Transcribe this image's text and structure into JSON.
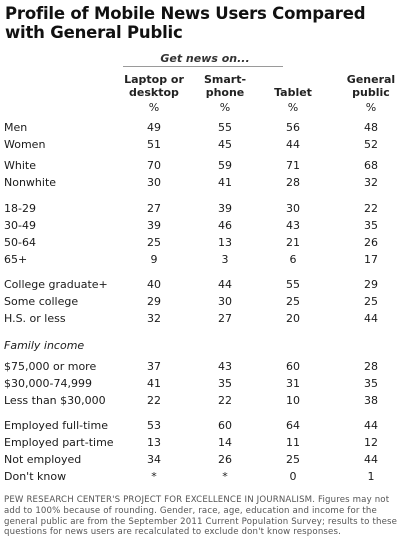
{
  "title": "Profile of Mobile News Users Compared with General Public",
  "subtitle": "Get news on...",
  "columns": [
    {
      "label": "Laptop or desktop",
      "unit": "%"
    },
    {
      "label": "Smart-phone",
      "unit": "%"
    },
    {
      "label": "Tablet",
      "unit": "%"
    },
    {
      "label": "General public",
      "unit": "%"
    }
  ],
  "section_label": "Family income",
  "footnote": "PEW RESEARCH CENTER'S PROJECT FOR EXCELLENCE IN JOURNALISM. Figures may not add to 100% because of rounding. Gender, race, age, education and income for the general public are from the September 2011 Current Population Survey; results to these questions for news users are recalculated to exclude don't know responses.",
  "chart_data": {
    "type": "table",
    "title": "Profile of Mobile News Users Compared with General Public",
    "columns": [
      "Laptop or desktop",
      "Smart-phone",
      "Tablet",
      "General public"
    ],
    "rows": [
      {
        "label": "Men",
        "values": [
          "49",
          "55",
          "56",
          "48"
        ]
      },
      {
        "label": "Women",
        "values": [
          "51",
          "45",
          "44",
          "52"
        ]
      },
      {
        "label": "White",
        "values": [
          "70",
          "59",
          "71",
          "68"
        ]
      },
      {
        "label": "Nonwhite",
        "values": [
          "30",
          "41",
          "28",
          "32"
        ]
      },
      {
        "label": "18-29",
        "values": [
          "27",
          "39",
          "30",
          "22"
        ]
      },
      {
        "label": "30-49",
        "values": [
          "39",
          "46",
          "43",
          "35"
        ]
      },
      {
        "label": "50-64",
        "values": [
          "25",
          "13",
          "21",
          "26"
        ]
      },
      {
        "label": "65+",
        "values": [
          "9",
          "3",
          "6",
          "17"
        ]
      },
      {
        "label": "College graduate+",
        "values": [
          "40",
          "44",
          "55",
          "29"
        ]
      },
      {
        "label": "Some college",
        "values": [
          "29",
          "30",
          "25",
          "25"
        ]
      },
      {
        "label": "H.S. or less",
        "values": [
          "32",
          "27",
          "20",
          "44"
        ]
      },
      {
        "label": "$75,000 or more",
        "values": [
          "37",
          "43",
          "60",
          "28"
        ]
      },
      {
        "label": "$30,000-74,999",
        "values": [
          "41",
          "35",
          "31",
          "35"
        ]
      },
      {
        "label": "Less than $30,000",
        "values": [
          "22",
          "22",
          "10",
          "38"
        ]
      },
      {
        "label": "Employed full-time",
        "values": [
          "53",
          "60",
          "64",
          "44"
        ]
      },
      {
        "label": "Employed part-time",
        "values": [
          "13",
          "14",
          "11",
          "12"
        ]
      },
      {
        "label": "Not employed",
        "values": [
          "34",
          "26",
          "25",
          "44"
        ]
      },
      {
        "label": "Don't know",
        "values": [
          "*",
          "*",
          "0",
          "1"
        ]
      }
    ]
  }
}
